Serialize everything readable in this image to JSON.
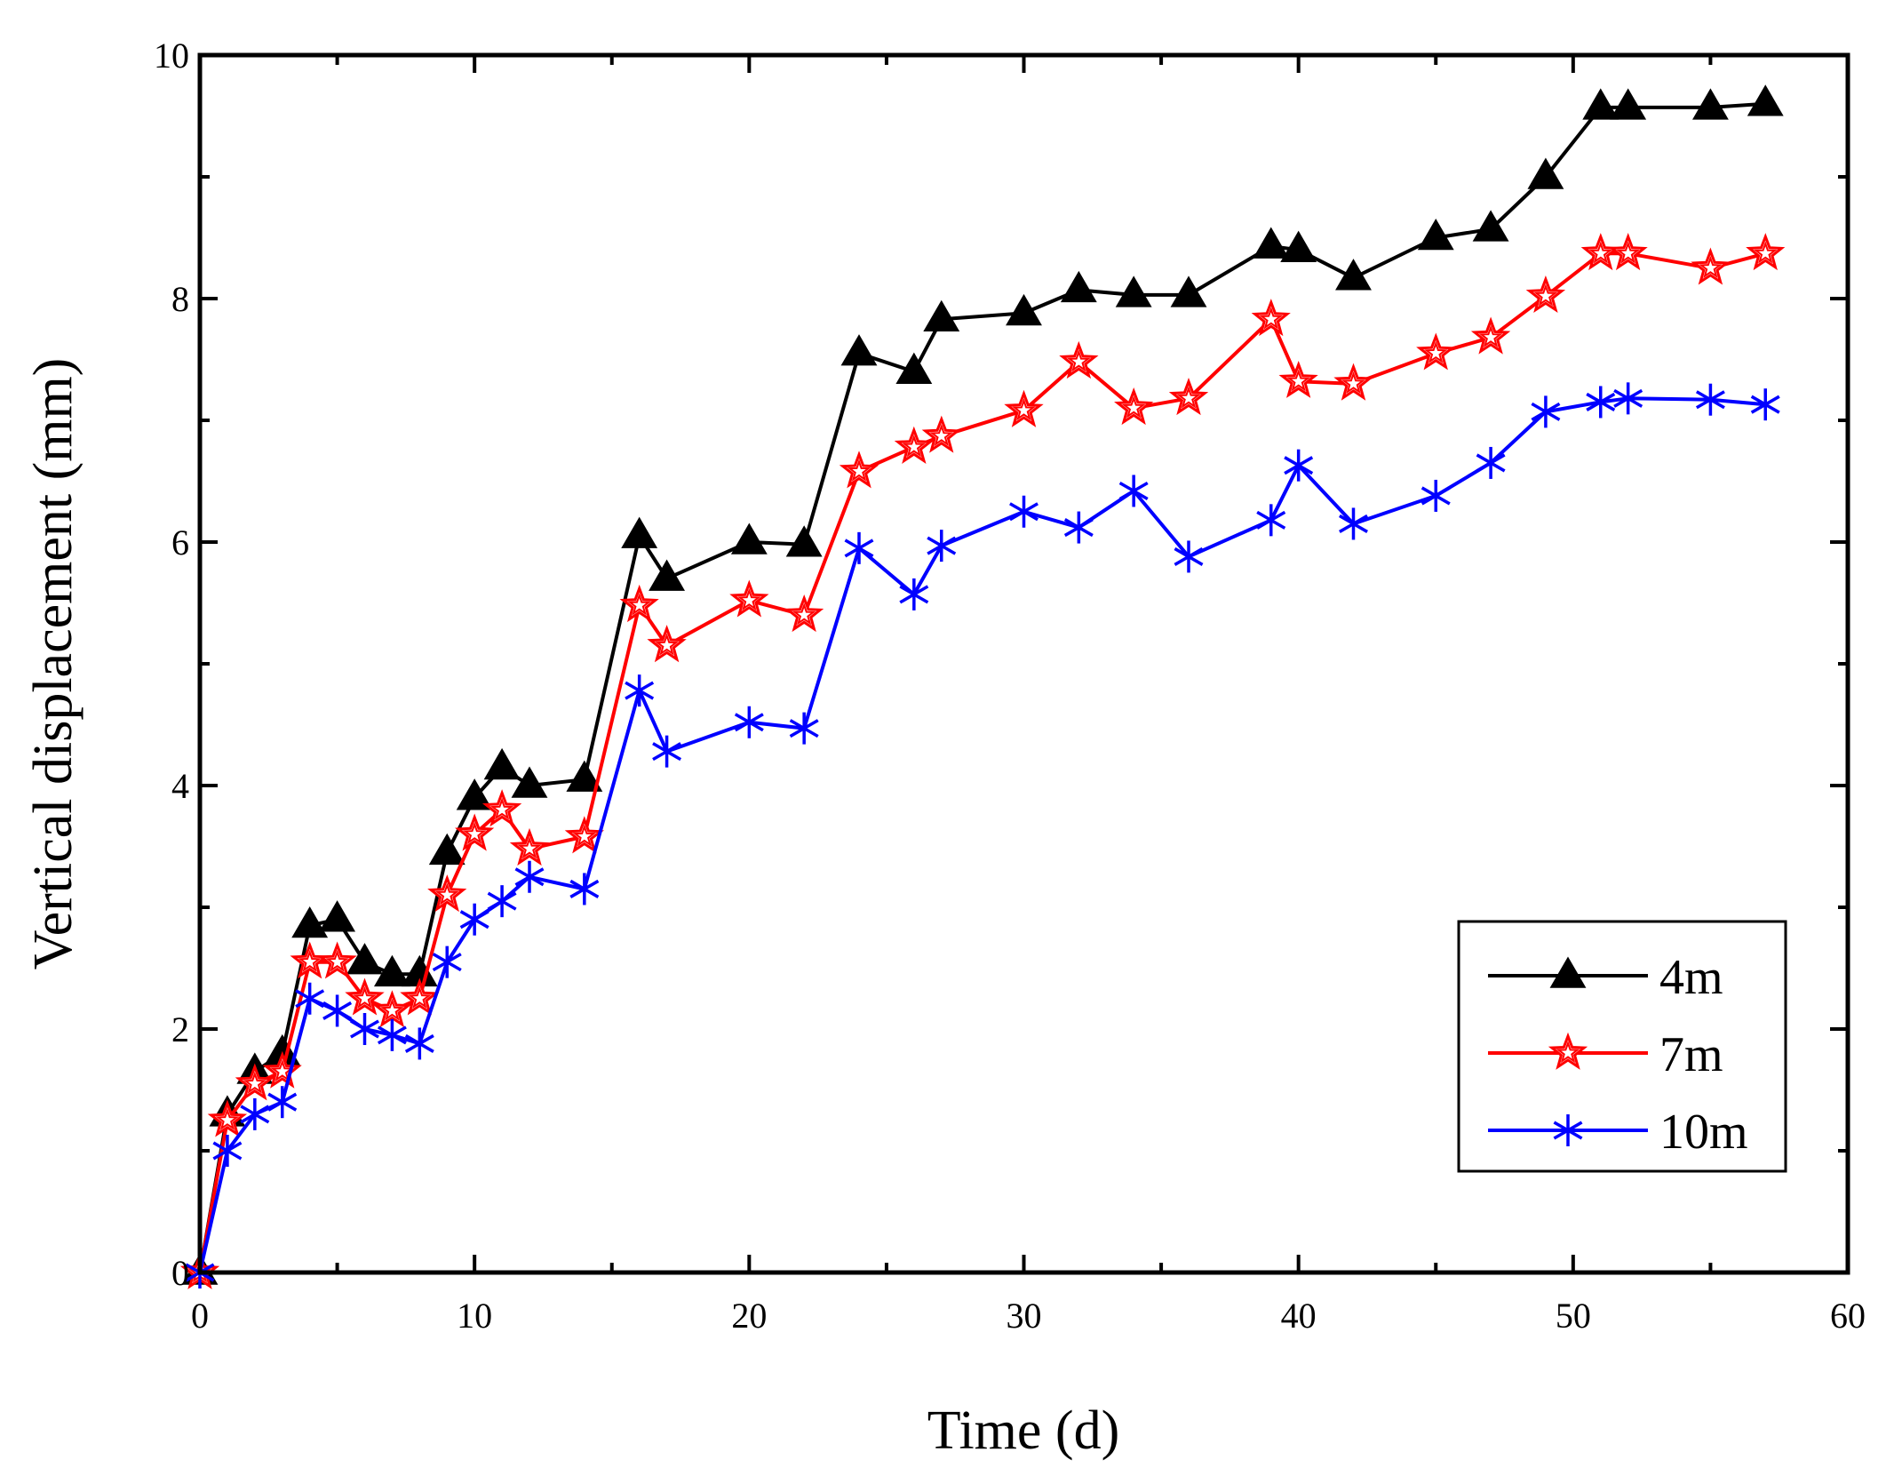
{
  "chart_data": {
    "type": "line",
    "title": "",
    "xlabel": "Time (d)",
    "ylabel": "Vertical  displacement (mm)",
    "xlim": [
      0,
      60
    ],
    "ylim": [
      0,
      10
    ],
    "xticks": [
      0,
      10,
      20,
      30,
      40,
      50,
      60
    ],
    "yticks": [
      0,
      2,
      4,
      6,
      8,
      10
    ],
    "xtick_labels": [
      "0",
      "10",
      "20",
      "30",
      "40",
      "50",
      "60"
    ],
    "ytick_labels": [
      "0",
      "2",
      "4",
      "6",
      "8",
      "10"
    ],
    "grid": false,
    "legend_position": "bottom-right",
    "series": [
      {
        "name": "4m",
        "color": "#000000",
        "marker": "triangle",
        "x": [
          0,
          1,
          2,
          3,
          4,
          5,
          6,
          7,
          8,
          9,
          10,
          11,
          12,
          14,
          16,
          17,
          20,
          22,
          24,
          26,
          27,
          30,
          32,
          34,
          36,
          39,
          40,
          42,
          45,
          47,
          49,
          51,
          52,
          55,
          57
        ],
        "y": [
          0,
          1.3,
          1.65,
          1.8,
          2.85,
          2.9,
          2.55,
          2.45,
          2.45,
          3.45,
          3.9,
          4.15,
          4.0,
          4.05,
          6.05,
          5.7,
          6.0,
          5.98,
          7.55,
          7.4,
          7.83,
          7.88,
          8.07,
          8.03,
          8.03,
          8.43,
          8.4,
          8.17,
          8.5,
          8.57,
          9.0,
          9.57,
          9.57,
          9.57,
          9.6
        ]
      },
      {
        "name": "7m",
        "color": "#ff0000",
        "marker": "star",
        "x": [
          0,
          1,
          2,
          3,
          4,
          5,
          6,
          7,
          8,
          9,
          10,
          11,
          12,
          14,
          16,
          17,
          20,
          22,
          24,
          26,
          27,
          30,
          32,
          34,
          36,
          39,
          40,
          42,
          45,
          47,
          49,
          51,
          52,
          55,
          57
        ],
        "y": [
          0,
          1.25,
          1.55,
          1.65,
          2.55,
          2.55,
          2.25,
          2.15,
          2.25,
          3.1,
          3.6,
          3.8,
          3.48,
          3.58,
          5.48,
          5.15,
          5.52,
          5.4,
          6.58,
          6.78,
          6.87,
          7.08,
          7.48,
          7.1,
          7.18,
          7.83,
          7.32,
          7.3,
          7.55,
          7.68,
          8.02,
          8.37,
          8.37,
          8.25,
          8.37
        ]
      },
      {
        "name": "10m",
        "color": "#0000ff",
        "marker": "asterisk",
        "x": [
          0,
          1,
          2,
          3,
          4,
          5,
          6,
          7,
          8,
          9,
          10,
          11,
          12,
          14,
          16,
          17,
          20,
          22,
          24,
          26,
          27,
          30,
          32,
          34,
          36,
          39,
          40,
          42,
          45,
          47,
          49,
          51,
          52,
          55,
          57
        ],
        "y": [
          0,
          1.0,
          1.3,
          1.4,
          2.25,
          2.15,
          2.0,
          1.95,
          1.88,
          2.55,
          2.9,
          3.05,
          3.25,
          3.15,
          4.78,
          4.28,
          4.52,
          4.47,
          5.95,
          5.57,
          5.97,
          6.25,
          6.12,
          6.42,
          5.88,
          6.18,
          6.63,
          6.15,
          6.38,
          6.65,
          7.07,
          7.15,
          7.18,
          7.17,
          7.13
        ]
      }
    ]
  }
}
